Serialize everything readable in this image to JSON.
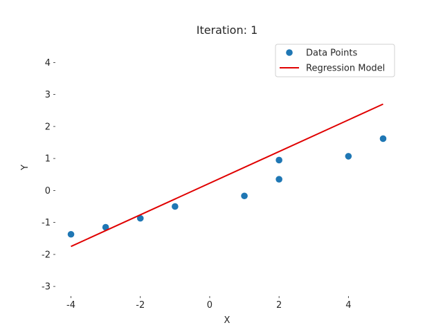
{
  "chart_data": {
    "type": "scatter",
    "title": "Iteration: 1",
    "xlabel": "X",
    "ylabel": "Y",
    "xlim": [
      -4.45,
      5.45
    ],
    "ylim": [
      -3.3,
      4.7
    ],
    "xticks": [
      -4,
      -2,
      0,
      2,
      4
    ],
    "xtick_labels": [
      "-4",
      "-2",
      "0",
      "2",
      "4"
    ],
    "yticks": [
      -3,
      -2,
      -1,
      0,
      1,
      2,
      3,
      4
    ],
    "ytick_labels": [
      "-3",
      "-2",
      "-1",
      "0",
      "1",
      "2",
      "3",
      "4"
    ],
    "grid": false,
    "legend_position": "top-right",
    "series": [
      {
        "name": "Data Points",
        "kind": "scatter",
        "color": "#1f77b4",
        "x": [
          -4,
          -3,
          -2,
          -1,
          1,
          2,
          2,
          4,
          5
        ],
        "y": [
          -1.37,
          -1.15,
          -0.87,
          -0.5,
          -0.17,
          0.35,
          0.95,
          1.07,
          1.62
        ]
      },
      {
        "name": "Regression Model",
        "kind": "line",
        "color": "#e00000",
        "x": [
          -4,
          5
        ],
        "y": [
          -1.75,
          2.7
        ]
      }
    ]
  }
}
